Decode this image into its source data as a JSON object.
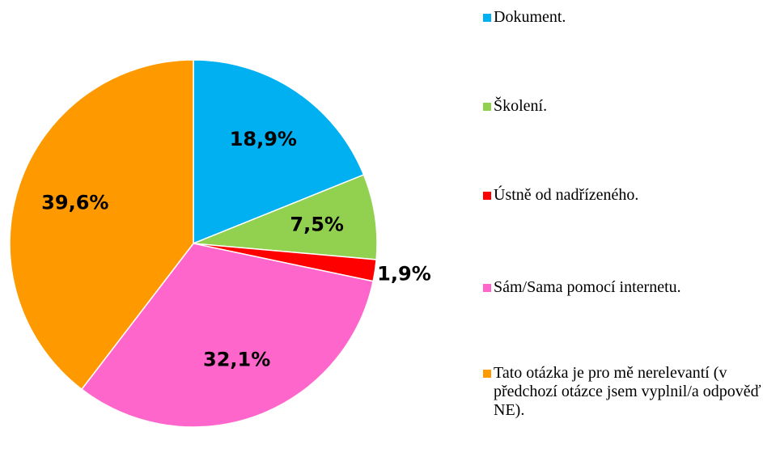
{
  "chart_data": {
    "type": "pie",
    "categories": [
      "Dokument.",
      "Školení.",
      "Ústně od nadřízeného.",
      "Sám/Sama pomocí internetu.",
      "Tato otázka je pro mě nerelevantí (v předchozí otázce jsem vyplnil/a odpověď NE)."
    ],
    "values": [
      18.9,
      7.5,
      1.9,
      32.1,
      39.6
    ],
    "value_labels": [
      "18,9%",
      "7,5%",
      "1,9%",
      "32,1%",
      "39,6%"
    ],
    "colors": [
      "#00b0f0",
      "#92d050",
      "#ff0000",
      "#ff66cc",
      "#ff9900"
    ],
    "legend": "right"
  }
}
